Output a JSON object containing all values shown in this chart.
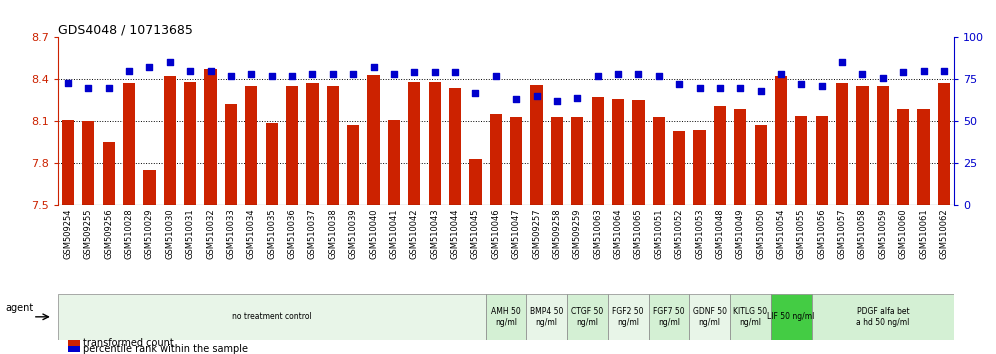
{
  "title": "GDS4048 / 10713685",
  "categories": [
    "GSM509254",
    "GSM509255",
    "GSM509256",
    "GSM510028",
    "GSM510029",
    "GSM510030",
    "GSM510031",
    "GSM510032",
    "GSM510033",
    "GSM510034",
    "GSM510035",
    "GSM510036",
    "GSM510037",
    "GSM510038",
    "GSM510039",
    "GSM510040",
    "GSM510041",
    "GSM510042",
    "GSM510043",
    "GSM510044",
    "GSM510045",
    "GSM510046",
    "GSM510047",
    "GSM509257",
    "GSM509258",
    "GSM509259",
    "GSM510063",
    "GSM510064",
    "GSM510065",
    "GSM510051",
    "GSM510052",
    "GSM510053",
    "GSM510048",
    "GSM510049",
    "GSM510050",
    "GSM510054",
    "GSM510055",
    "GSM510056",
    "GSM510057",
    "GSM510058",
    "GSM510059",
    "GSM510060",
    "GSM510061",
    "GSM510062"
  ],
  "bar_values": [
    8.11,
    8.1,
    7.95,
    8.37,
    7.75,
    8.42,
    8.38,
    8.47,
    8.22,
    8.35,
    8.09,
    8.35,
    8.37,
    8.35,
    8.07,
    8.43,
    8.11,
    8.38,
    8.38,
    8.34,
    7.83,
    8.15,
    8.13,
    8.36,
    8.13,
    8.13,
    8.27,
    8.26,
    8.25,
    8.13,
    8.03,
    8.04,
    8.21,
    8.19,
    8.07,
    8.42,
    8.14,
    8.14,
    8.37,
    8.35,
    8.35,
    8.19,
    8.19,
    8.37
  ],
  "percentile_values": [
    73,
    70,
    70,
    80,
    82,
    85,
    80,
    80,
    77,
    78,
    77,
    77,
    78,
    78,
    78,
    82,
    78,
    79,
    79,
    79,
    67,
    77,
    63,
    65,
    62,
    64,
    77,
    78,
    78,
    77,
    72,
    70,
    70,
    70,
    68,
    78,
    72,
    71,
    85,
    78,
    76,
    79,
    80,
    80
  ],
  "ylim_left": [
    7.5,
    8.7
  ],
  "ylim_right": [
    0,
    100
  ],
  "yticks_left": [
    7.5,
    7.8,
    8.1,
    8.4,
    8.7
  ],
  "yticks_right": [
    0,
    25,
    50,
    75,
    100
  ],
  "bar_color": "#cc2200",
  "dot_color": "#0000cc",
  "agent_groups": [
    {
      "label": "no treatment control",
      "start": 0,
      "end": 21,
      "color": "#e8f5e8"
    },
    {
      "label": "AMH 50\nng/ml",
      "start": 21,
      "end": 23,
      "color": "#d4f0d4"
    },
    {
      "label": "BMP4 50\nng/ml",
      "start": 23,
      "end": 25,
      "color": "#e8f5e8"
    },
    {
      "label": "CTGF 50\nng/ml",
      "start": 25,
      "end": 27,
      "color": "#d4f0d4"
    },
    {
      "label": "FGF2 50\nng/ml",
      "start": 27,
      "end": 29,
      "color": "#e8f5e8"
    },
    {
      "label": "FGF7 50\nng/ml",
      "start": 29,
      "end": 31,
      "color": "#d4f0d4"
    },
    {
      "label": "GDNF 50\nng/ml",
      "start": 31,
      "end": 33,
      "color": "#e8f5e8"
    },
    {
      "label": "KITLG 50\nng/ml",
      "start": 33,
      "end": 35,
      "color": "#d4f0d4"
    },
    {
      "label": "LIF 50 ng/ml",
      "start": 35,
      "end": 37,
      "color": "#44cc44"
    },
    {
      "label": "PDGF alfa bet\na hd 50 ng/ml",
      "start": 37,
      "end": 44,
      "color": "#d4f0d4"
    }
  ],
  "left_axis_color": "#cc2200",
  "right_axis_color": "#0000cc",
  "title_fontsize": 9,
  "tick_fontsize": 6,
  "agent_fontsize": 5.5,
  "legend_fontsize": 7
}
